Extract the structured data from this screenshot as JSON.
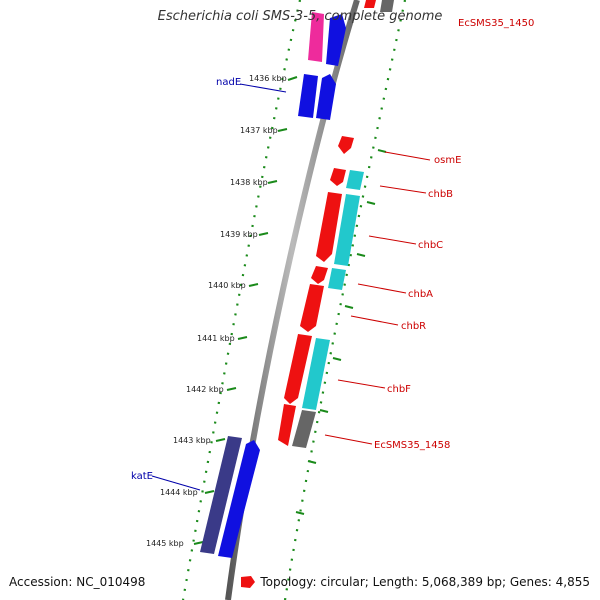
{
  "title": "Escherichia coli SMS-3-5, complete genome",
  "footer": {
    "accession": "Accession: NC_010498",
    "topology": "Topology: circular; Length: 5,068,389 bp; Genes: 4,855"
  },
  "colors": {
    "forward_red": "#ee1111",
    "cyan": "#22c8cc",
    "blue": "#1010e0",
    "dark_slate": "#3a3a88",
    "gray": "#666666",
    "pink": "#ee2b9c",
    "tick_green": "#1a8a1a",
    "label_red": "#cc0000",
    "label_blue": "#0000aa"
  },
  "tick_labels": [
    "1436 kbp",
    "1437 kbp",
    "1438 kbp",
    "1439 kbp",
    "1440 kbp",
    "1441 kbp",
    "1442 kbp",
    "1443 kbp",
    "1444 kbp",
    "1445 kbp"
  ],
  "genes": [
    {
      "id": "top-left-upper",
      "color": "pink",
      "label": ""
    },
    {
      "id": "top-right-upper",
      "color": "blue",
      "label": ""
    },
    {
      "id": "top-right-gray",
      "color": "gray",
      "label": ""
    },
    {
      "id": "nadE-a",
      "color": "blue",
      "label": ""
    },
    {
      "id": "nadE-b",
      "color": "blue",
      "label": ""
    },
    {
      "id": "osmE",
      "color": "forward_red",
      "label": ""
    },
    {
      "id": "chbB-r",
      "color": "forward_red",
      "label": ""
    },
    {
      "id": "chbB-c",
      "color": "cyan",
      "label": ""
    },
    {
      "id": "chbC-r",
      "color": "forward_red",
      "label": ""
    },
    {
      "id": "chbC-c",
      "color": "cyan",
      "label": ""
    },
    {
      "id": "chbA-r",
      "color": "forward_red",
      "label": ""
    },
    {
      "id": "chbA-c",
      "color": "cyan",
      "label": ""
    },
    {
      "id": "chbR",
      "color": "forward_red",
      "label": ""
    },
    {
      "id": "chbF-r",
      "color": "forward_red",
      "label": ""
    },
    {
      "id": "chbF-c",
      "color": "cyan",
      "label": ""
    },
    {
      "id": "EcSMS35_1458-r",
      "color": "forward_red",
      "label": ""
    },
    {
      "id": "EcSMS35_1458-g",
      "color": "gray",
      "label": ""
    },
    {
      "id": "katE-a",
      "color": "dark_slate",
      "label": ""
    },
    {
      "id": "katE-b",
      "color": "blue",
      "label": ""
    }
  ],
  "labels": [
    {
      "text": "EcSMS35_1450",
      "side": "right",
      "color": "label_red"
    },
    {
      "text": "nadE",
      "side": "left",
      "color": "label_blue"
    },
    {
      "text": "osmE",
      "side": "right",
      "color": "label_red"
    },
    {
      "text": "chbB",
      "side": "right",
      "color": "label_red"
    },
    {
      "text": "chbC",
      "side": "right",
      "color": "label_red"
    },
    {
      "text": "chbA",
      "side": "right",
      "color": "label_red"
    },
    {
      "text": "chbR",
      "side": "right",
      "color": "label_red"
    },
    {
      "text": "chbF",
      "side": "right",
      "color": "label_red"
    },
    {
      "text": "EcSMS35_1458",
      "side": "right",
      "color": "label_red"
    },
    {
      "text": "katE",
      "side": "left",
      "color": "label_blue"
    }
  ]
}
